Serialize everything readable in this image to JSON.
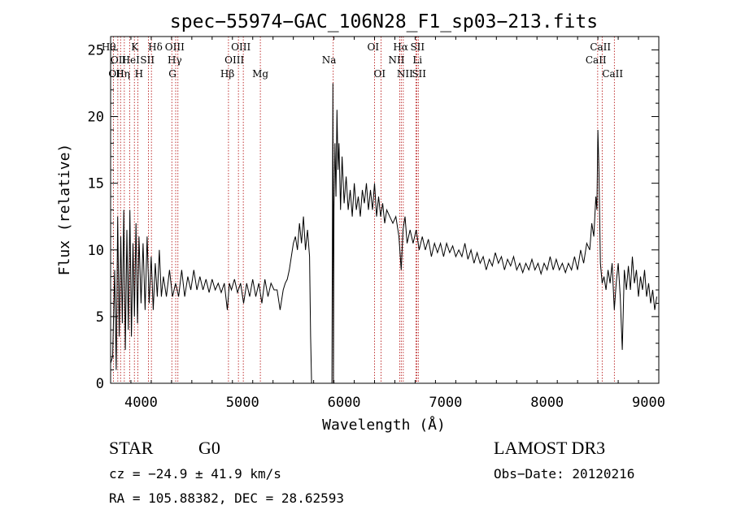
{
  "chart_data": {
    "type": "line",
    "title": "spec−55974−GAC_106N28_F1_sp03−213.fits",
    "xlabel": "Wavelength (Å)",
    "ylabel": "Flux (relative)",
    "xlim": [
      3700,
      9100
    ],
    "ylim": [
      0,
      26
    ],
    "xticks": [
      4000,
      5000,
      6000,
      7000,
      8000,
      9000
    ],
    "yticks": [
      0,
      5,
      10,
      15,
      20,
      25
    ],
    "grid": false,
    "series": [
      {
        "points": [
          [
            3700,
            1.5
          ],
          [
            3720,
            2.0
          ],
          [
            3740,
            8.5
          ],
          [
            3755,
            1.0
          ],
          [
            3770,
            12.5
          ],
          [
            3785,
            3.5
          ],
          [
            3800,
            11.0
          ],
          [
            3815,
            4.5
          ],
          [
            3830,
            13.0
          ],
          [
            3845,
            2.5
          ],
          [
            3860,
            11.5
          ],
          [
            3875,
            4.0
          ],
          [
            3890,
            13.0
          ],
          [
            3905,
            3.5
          ],
          [
            3920,
            10.5
          ],
          [
            3935,
            5.0
          ],
          [
            3950,
            12.0
          ],
          [
            3965,
            4.5
          ],
          [
            3980,
            11.0
          ],
          [
            4000,
            6.0
          ],
          [
            4020,
            10.5
          ],
          [
            4040,
            5.5
          ],
          [
            4060,
            11.0
          ],
          [
            4080,
            6.0
          ],
          [
            4100,
            9.5
          ],
          [
            4120,
            5.5
          ],
          [
            4140,
            9.0
          ],
          [
            4160,
            6.5
          ],
          [
            4180,
            10.0
          ],
          [
            4200,
            6.5
          ],
          [
            4220,
            8.0
          ],
          [
            4250,
            6.5
          ],
          [
            4280,
            8.5
          ],
          [
            4310,
            6.5
          ],
          [
            4340,
            7.5
          ],
          [
            4370,
            6.5
          ],
          [
            4400,
            8.5
          ],
          [
            4430,
            6.5
          ],
          [
            4460,
            8.0
          ],
          [
            4490,
            7.0
          ],
          [
            4520,
            8.5
          ],
          [
            4550,
            7.0
          ],
          [
            4580,
            8.0
          ],
          [
            4610,
            7.0
          ],
          [
            4640,
            7.8
          ],
          [
            4670,
            6.8
          ],
          [
            4700,
            7.8
          ],
          [
            4730,
            7.0
          ],
          [
            4760,
            7.5
          ],
          [
            4790,
            6.8
          ],
          [
            4820,
            7.5
          ],
          [
            4850,
            5.5
          ],
          [
            4870,
            7.5
          ],
          [
            4890,
            7.0
          ],
          [
            4920,
            7.8
          ],
          [
            4950,
            6.8
          ],
          [
            4980,
            7.5
          ],
          [
            5010,
            6.0
          ],
          [
            5040,
            7.5
          ],
          [
            5070,
            6.5
          ],
          [
            5100,
            7.8
          ],
          [
            5130,
            6.5
          ],
          [
            5160,
            7.5
          ],
          [
            5190,
            6.0
          ],
          [
            5220,
            7.8
          ],
          [
            5250,
            6.5
          ],
          [
            5280,
            7.5
          ],
          [
            5310,
            7.0
          ],
          [
            5340,
            7.0
          ],
          [
            5370,
            5.5
          ],
          [
            5400,
            7.0
          ],
          [
            5420,
            7.5
          ],
          [
            5440,
            7.8
          ],
          [
            5460,
            8.5
          ],
          [
            5480,
            9.5
          ],
          [
            5500,
            10.5
          ],
          [
            5520,
            11.0
          ],
          [
            5540,
            10.0
          ],
          [
            5560,
            12.0
          ],
          [
            5580,
            10.5
          ],
          [
            5600,
            12.5
          ],
          [
            5620,
            10.0
          ],
          [
            5640,
            11.5
          ],
          [
            5660,
            9.5
          ],
          [
            5670,
            3.5
          ],
          [
            5680,
            0.0
          ],
          [
            5690,
            0.0
          ],
          [
            5700,
            0.0
          ],
          [
            5750,
            0.0
          ],
          [
            5800,
            0.0
          ],
          [
            5850,
            0.0
          ],
          [
            5880,
            0.0
          ],
          [
            5890,
            22.5
          ],
          [
            5895,
            0.0
          ],
          [
            5900,
            13.0
          ],
          [
            5910,
            18.0
          ],
          [
            5920,
            14.0
          ],
          [
            5930,
            20.5
          ],
          [
            5940,
            16.0
          ],
          [
            5950,
            18.0
          ],
          [
            5965,
            13.0
          ],
          [
            5980,
            17.0
          ],
          [
            6000,
            13.5
          ],
          [
            6020,
            15.5
          ],
          [
            6040,
            13.0
          ],
          [
            6060,
            14.5
          ],
          [
            6080,
            12.5
          ],
          [
            6100,
            15.0
          ],
          [
            6120,
            13.0
          ],
          [
            6140,
            14.0
          ],
          [
            6160,
            12.5
          ],
          [
            6180,
            14.5
          ],
          [
            6200,
            13.5
          ],
          [
            6220,
            15.0
          ],
          [
            6240,
            13.0
          ],
          [
            6260,
            14.5
          ],
          [
            6280,
            13.0
          ],
          [
            6300,
            15.0
          ],
          [
            6320,
            12.5
          ],
          [
            6340,
            14.0
          ],
          [
            6360,
            12.5
          ],
          [
            6380,
            13.5
          ],
          [
            6400,
            12.0
          ],
          [
            6420,
            13.0
          ],
          [
            6450,
            12.5
          ],
          [
            6480,
            12.0
          ],
          [
            6510,
            12.5
          ],
          [
            6540,
            11.0
          ],
          [
            6563,
            8.5
          ],
          [
            6580,
            11.5
          ],
          [
            6600,
            12.5
          ],
          [
            6620,
            10.5
          ],
          [
            6650,
            11.5
          ],
          [
            6680,
            10.5
          ],
          [
            6710,
            11.5
          ],
          [
            6740,
            10.0
          ],
          [
            6770,
            11.0
          ],
          [
            6800,
            10.0
          ],
          [
            6830,
            10.8
          ],
          [
            6860,
            9.5
          ],
          [
            6890,
            10.5
          ],
          [
            6920,
            9.8
          ],
          [
            6950,
            10.5
          ],
          [
            6980,
            9.5
          ],
          [
            7010,
            10.5
          ],
          [
            7040,
            9.8
          ],
          [
            7070,
            10.3
          ],
          [
            7100,
            9.5
          ],
          [
            7130,
            10.0
          ],
          [
            7160,
            9.5
          ],
          [
            7190,
            10.5
          ],
          [
            7220,
            9.3
          ],
          [
            7250,
            10.0
          ],
          [
            7280,
            9.0
          ],
          [
            7310,
            9.8
          ],
          [
            7340,
            9.0
          ],
          [
            7370,
            9.5
          ],
          [
            7400,
            8.5
          ],
          [
            7430,
            9.3
          ],
          [
            7460,
            8.8
          ],
          [
            7490,
            9.8
          ],
          [
            7520,
            9.0
          ],
          [
            7550,
            9.5
          ],
          [
            7580,
            8.5
          ],
          [
            7610,
            9.3
          ],
          [
            7640,
            8.8
          ],
          [
            7670,
            9.5
          ],
          [
            7700,
            8.5
          ],
          [
            7730,
            9.0
          ],
          [
            7760,
            8.3
          ],
          [
            7790,
            9.0
          ],
          [
            7820,
            8.5
          ],
          [
            7850,
            9.3
          ],
          [
            7880,
            8.5
          ],
          [
            7910,
            9.0
          ],
          [
            7940,
            8.2
          ],
          [
            7970,
            9.0
          ],
          [
            8000,
            8.5
          ],
          [
            8030,
            9.5
          ],
          [
            8060,
            8.5
          ],
          [
            8090,
            9.3
          ],
          [
            8120,
            8.5
          ],
          [
            8150,
            9.0
          ],
          [
            8180,
            8.3
          ],
          [
            8210,
            9.0
          ],
          [
            8240,
            8.5
          ],
          [
            8270,
            9.5
          ],
          [
            8300,
            8.5
          ],
          [
            8330,
            10.0
          ],
          [
            8360,
            9.0
          ],
          [
            8390,
            10.5
          ],
          [
            8420,
            10.0
          ],
          [
            8440,
            12.0
          ],
          [
            8460,
            11.0
          ],
          [
            8480,
            14.0
          ],
          [
            8490,
            13.0
          ],
          [
            8500,
            19.0
          ],
          [
            8510,
            16.0
          ],
          [
            8525,
            9.0
          ],
          [
            8542,
            7.5
          ],
          [
            8560,
            8.0
          ],
          [
            8580,
            7.0
          ],
          [
            8600,
            8.5
          ],
          [
            8620,
            7.5
          ],
          [
            8640,
            9.0
          ],
          [
            8662,
            5.5
          ],
          [
            8680,
            7.5
          ],
          [
            8700,
            9.0
          ],
          [
            8720,
            6.5
          ],
          [
            8740,
            2.5
          ],
          [
            8760,
            8.5
          ],
          [
            8780,
            7.0
          ],
          [
            8800,
            8.8
          ],
          [
            8820,
            7.0
          ],
          [
            8840,
            9.5
          ],
          [
            8860,
            7.5
          ],
          [
            8880,
            8.5
          ],
          [
            8900,
            6.5
          ],
          [
            8920,
            8.0
          ],
          [
            8940,
            7.0
          ],
          [
            8960,
            8.5
          ],
          [
            8980,
            6.5
          ],
          [
            9000,
            7.5
          ],
          [
            9020,
            6.0
          ],
          [
            9040,
            7.0
          ],
          [
            9060,
            5.5
          ],
          [
            9080,
            6.5
          ]
        ]
      }
    ],
    "lines": [
      {
        "wl": 3727,
        "labels": [
          {
            "t": "OII",
            "row": 3,
            "dx": -6
          }
        ]
      },
      {
        "wl": 3771,
        "labels": [
          {
            "t": "OII",
            "row": 2,
            "dx": -9
          }
        ]
      },
      {
        "wl": 3798,
        "labels": [
          {
            "t": "Hη",
            "row": 3,
            "dx": -6
          }
        ]
      },
      {
        "wl": 3835,
        "labels": [
          {
            "t": "Hθ",
            "row": 1,
            "dx": -28
          }
        ]
      },
      {
        "wl": 3889,
        "labels": [
          {
            "t": "HeI",
            "row": 2,
            "dx": -10
          }
        ]
      },
      {
        "wl": 3934,
        "labels": [
          {
            "t": "K",
            "row": 1,
            "dx": -4
          }
        ]
      },
      {
        "wl": 3969,
        "labels": [
          {
            "t": "H",
            "row": 3,
            "dx": -4
          }
        ]
      },
      {
        "wl": 4072,
        "labels": [
          {
            "t": "SII",
            "row": 2,
            "dx": -10
          }
        ]
      },
      {
        "wl": 4102,
        "labels": [
          {
            "t": "Hδ",
            "row": 1,
            "dx": -4
          }
        ]
      },
      {
        "wl": 4303,
        "labels": [
          {
            "t": "G",
            "row": 3,
            "dx": -4
          }
        ]
      },
      {
        "wl": 4341,
        "labels": [
          {
            "t": "Hγ",
            "row": 2,
            "dx": -10
          }
        ]
      },
      {
        "wl": 4363,
        "labels": [
          {
            "t": "OIII",
            "row": 1,
            "dx": -16
          }
        ]
      },
      {
        "wl": 4861,
        "labels": [
          {
            "t": "Hβ",
            "row": 3,
            "dx": -10
          }
        ]
      },
      {
        "wl": 4959,
        "labels": [
          {
            "t": "OIII",
            "row": 2,
            "dx": -17
          }
        ]
      },
      {
        "wl": 5007,
        "labels": [
          {
            "t": "OIII",
            "row": 1,
            "dx": -15
          }
        ]
      },
      {
        "wl": 5175,
        "labels": [
          {
            "t": "Mg",
            "row": 3,
            "dx": -10
          }
        ]
      },
      {
        "wl": 5893,
        "labels": [
          {
            "t": "Na",
            "row": 2,
            "dx": -14
          }
        ]
      },
      {
        "wl": 6300,
        "labels": [
          {
            "t": "OI",
            "row": 1,
            "dx": -9
          }
        ]
      },
      {
        "wl": 6364,
        "labels": [
          {
            "t": "OI",
            "row": 3,
            "dx": -9
          }
        ]
      },
      {
        "wl": 6548,
        "labels": [
          {
            "t": "NII",
            "row": 2,
            "dx": -14
          }
        ]
      },
      {
        "wl": 6563,
        "labels": [
          {
            "t": "Hα",
            "row": 1,
            "dx": -10
          }
        ]
      },
      {
        "wl": 6583,
        "labels": [
          {
            "t": "NII",
            "row": 3,
            "dx": -8
          }
        ]
      },
      {
        "wl": 6707,
        "labels": [
          {
            "t": "Li",
            "row": 2,
            "dx": -4
          }
        ]
      },
      {
        "wl": 6716,
        "labels": [
          {
            "t": "SII",
            "row": 1,
            "dx": -8
          }
        ]
      },
      {
        "wl": 6731,
        "labels": [
          {
            "t": "SII",
            "row": 3,
            "dx": -8
          }
        ]
      },
      {
        "wl": 8498,
        "labels": [
          {
            "t": "CaII",
            "row": 2,
            "dx": -15
          }
        ]
      },
      {
        "wl": 8542,
        "labels": [
          {
            "t": "CaII",
            "row": 1,
            "dx": -15
          }
        ]
      },
      {
        "wl": 8662,
        "labels": [
          {
            "t": "CaII",
            "row": 3,
            "dx": -15
          }
        ]
      }
    ]
  },
  "info": {
    "class": "STAR",
    "subclass": "G0",
    "survey": "LAMOST DR3",
    "cz": "cz = −24.9 ± 41.9 km/s",
    "obs_date": "Obs−Date: 20120216",
    "radec": "RA = 105.88382, DEC =  28.62593"
  }
}
